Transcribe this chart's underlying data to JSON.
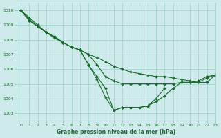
{
  "title": "Graphe pression niveau de la mer (hPa)",
  "bg_color": "#ceeaea",
  "grid_color": "#9ecfca",
  "line_color": "#1a6b2e",
  "xlim": [
    -0.5,
    23
  ],
  "ylim": [
    1002.5,
    1010.5
  ],
  "yticks": [
    1003,
    1004,
    1005,
    1006,
    1007,
    1008,
    1009,
    1010
  ],
  "xticks": [
    0,
    1,
    2,
    3,
    4,
    5,
    6,
    7,
    8,
    9,
    10,
    11,
    12,
    13,
    14,
    15,
    16,
    17,
    18,
    19,
    20,
    21,
    22,
    23
  ],
  "series": [
    [
      1010.0,
      1009.5,
      1009.0,
      1008.5,
      1008.2,
      1007.8,
      1007.5,
      1007.3,
      1007.0,
      1006.8,
      1006.5,
      1006.2,
      1006.0,
      1005.8,
      1005.7,
      1005.6,
      1005.5,
      1005.5,
      1005.4,
      1005.3,
      1005.2,
      1005.1,
      1005.1,
      1005.6
    ],
    [
      1010.0,
      1009.4,
      1008.9,
      1008.5,
      1008.1,
      1007.8,
      1007.5,
      1007.3,
      1007.0,
      1006.3,
      1005.5,
      1005.2,
      1005.0,
      1005.0,
      1005.0,
      1005.0,
      1005.0,
      1005.0,
      1005.0,
      1005.1,
      1005.1,
      1005.1,
      1005.4,
      1005.6
    ],
    [
      1010.0,
      1009.3,
      1008.9,
      1008.5,
      1008.2,
      1007.8,
      1007.5,
      1007.3,
      1006.3,
      1005.5,
      1004.7,
      1003.2,
      1003.4,
      1003.4,
      1003.4,
      1003.5,
      1003.8,
      1004.2,
      1004.7,
      1005.1,
      1005.1,
      1005.2,
      1005.5,
      1005.6
    ],
    [
      1010.0,
      1009.3,
      1008.9,
      1008.5,
      1008.2,
      1007.8,
      1007.5,
      1007.3,
      1006.3,
      1005.3,
      1004.1,
      1003.2,
      1003.4,
      1003.4,
      1003.4,
      1003.5,
      1004.0,
      1004.7,
      null,
      null,
      null,
      null,
      null,
      null
    ]
  ]
}
